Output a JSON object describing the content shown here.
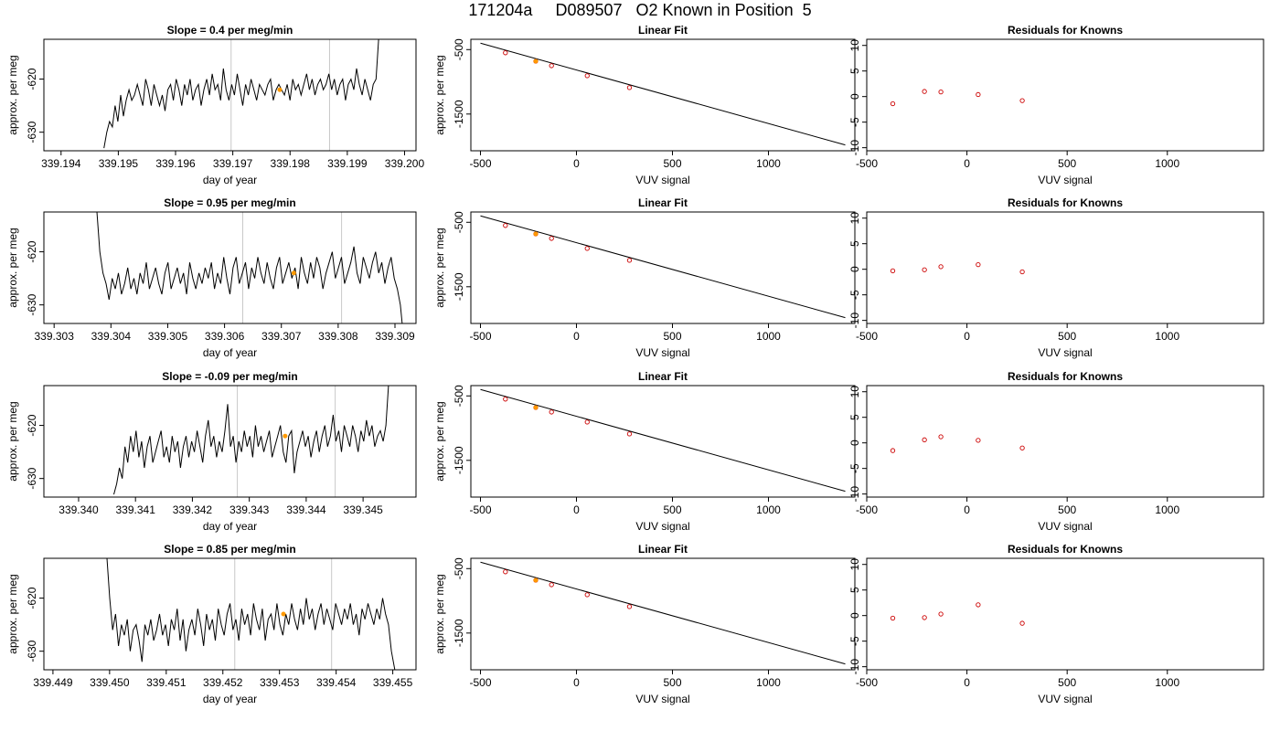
{
  "page": {
    "title": "171204a     D089507   O2 Known in Position  5"
  },
  "chart_data": [
    {
      "type": "line",
      "row": 1,
      "title": "Slope =  0.4  per meg/min",
      "xlabel": "day of year",
      "ylabel": "approx. per meg",
      "xlim": [
        339.1937,
        339.2002
      ],
      "ylim": [
        -633.5,
        -612.5
      ],
      "xticks": [
        "339.194",
        "339.195",
        "339.196",
        "339.197",
        "339.198",
        "339.199",
        "339.200"
      ],
      "yticks": [
        -630,
        -620
      ],
      "vlines": [
        339.19697,
        339.19869
      ],
      "series": [
        {
          "color": "#000000",
          "x_start": 339.19475,
          "x_end": 339.19955,
          "values": [
            -633,
            -630,
            -628,
            -629,
            -625,
            -628,
            -623,
            -627,
            -624,
            -622,
            -624,
            -623,
            -621,
            -623,
            -625,
            -620,
            -622,
            -625,
            -621,
            -623,
            -625,
            -623,
            -626,
            -622,
            -621,
            -624,
            -620,
            -622,
            -625,
            -621,
            -623,
            -620,
            -624,
            -622,
            -621,
            -625,
            -622,
            -620,
            -623,
            -619,
            -622,
            -621,
            -624,
            -618,
            -622,
            -624,
            -621,
            -623,
            -619,
            -622,
            -625,
            -621,
            -623,
            -620,
            -622,
            -624,
            -621,
            -622,
            -623,
            -621,
            -620,
            -624,
            -622,
            -621,
            -622,
            -623,
            -621,
            -624,
            -620,
            -622,
            -621,
            -623,
            -621,
            -619,
            -622,
            -620,
            -623,
            -621,
            -620,
            -622,
            -621,
            -619,
            -622,
            -620,
            -623,
            -621,
            -620,
            -624,
            -621,
            -620,
            -622,
            -618,
            -621,
            -623,
            -620,
            -622,
            -624,
            -621,
            -620,
            -612
          ]
        }
      ],
      "marker": {
        "x": 339.19782,
        "y": -622,
        "color": "#ff9900"
      }
    },
    {
      "type": "scatter",
      "row": 1,
      "title": "Linear Fit",
      "xlabel": "VUV signal",
      "ylabel": "approx. per meg",
      "xlim": [
        -550,
        1450
      ],
      "ylim": [
        -2070,
        -340
      ],
      "xticks": [
        -500,
        0,
        500,
        1000
      ],
      "yticks": [
        -500,
        -1500
      ],
      "line": {
        "x": [
          -500,
          1400
        ],
        "y": [
          -400,
          -1980
        ]
      },
      "series": [
        {
          "color": "#cc0000",
          "x": [
            -370,
            -212,
            -130,
            56,
            276
          ],
          "y": [
            -550,
            -680,
            -750,
            -905,
            -1090
          ]
        }
      ],
      "marker": {
        "x": -212,
        "y": -680,
        "color": "#ff9900"
      }
    },
    {
      "type": "scatter",
      "row": 1,
      "title": "Residuals for Knowns",
      "xlabel": "VUV signal",
      "ylabel": "",
      "xlim": [
        -500,
        1480
      ],
      "ylim": [
        -10.6,
        11.2
      ],
      "xticks": [
        -500,
        0,
        500,
        1000
      ],
      "yticks": [
        -10,
        -5,
        0,
        5,
        10
      ],
      "series": [
        {
          "color": "#cc0000",
          "x": [
            -370,
            -212,
            -130,
            56,
            276
          ],
          "y": [
            -1.4,
            1.0,
            0.9,
            0.4,
            -0.8
          ]
        }
      ]
    },
    {
      "type": "line",
      "row": 2,
      "title": "Slope =  0.95  per meg/min",
      "xlabel": "day of year",
      "ylabel": "approx. per meg",
      "xlim": [
        339.30282,
        339.30937
      ],
      "ylim": [
        -633.5,
        -612.5
      ],
      "xticks": [
        "339.303",
        "339.304",
        "339.305",
        "339.306",
        "339.307",
        "339.308",
        "339.309"
      ],
      "yticks": [
        -630,
        -620
      ],
      "vlines": [
        339.30632,
        339.30806
      ],
      "series": [
        {
          "color": "#000000",
          "x_start": 339.30375,
          "x_end": 339.30915,
          "values": [
            -612,
            -620,
            -624,
            -626,
            -629,
            -625,
            -627,
            -624,
            -628,
            -626,
            -623,
            -627,
            -625,
            -628,
            -624,
            -626,
            -622,
            -627,
            -625,
            -623,
            -626,
            -628,
            -624,
            -622,
            -627,
            -625,
            -623,
            -626,
            -624,
            -628,
            -622,
            -625,
            -627,
            -624,
            -626,
            -623,
            -625,
            -622,
            -627,
            -624,
            -626,
            -621,
            -625,
            -628,
            -623,
            -621,
            -626,
            -624,
            -622,
            -627,
            -623,
            -625,
            -621,
            -624,
            -626,
            -622,
            -625,
            -627,
            -623,
            -621,
            -626,
            -624,
            -622,
            -625,
            -623,
            -627,
            -621,
            -624,
            -626,
            -622,
            -625,
            -621,
            -623,
            -627,
            -624,
            -622,
            -620,
            -625,
            -623,
            -621,
            -626,
            -624,
            -622,
            -619,
            -624,
            -626,
            -621,
            -623,
            -625,
            -622,
            -620,
            -624,
            -622,
            -626,
            -623,
            -621,
            -625,
            -627,
            -630,
            -636
          ]
        }
      ],
      "marker": {
        "x": 339.30722,
        "y": -624,
        "color": "#ff9900"
      }
    },
    {
      "type": "scatter",
      "row": 2,
      "title": "Linear Fit",
      "xlabel": "VUV signal",
      "ylabel": "approx. per meg",
      "xlim": [
        -550,
        1450
      ],
      "ylim": [
        -2070,
        -340
      ],
      "xticks": [
        -500,
        0,
        500,
        1000
      ],
      "yticks": [
        -500,
        -1500
      ],
      "line": {
        "x": [
          -500,
          1400
        ],
        "y": [
          -400,
          -1980
        ]
      },
      "series": [
        {
          "color": "#cc0000",
          "x": [
            -370,
            -212,
            -130,
            56,
            276
          ],
          "y": [
            -550,
            -680,
            -750,
            -905,
            -1090
          ]
        }
      ],
      "marker": {
        "x": -212,
        "y": -680,
        "color": "#ff9900"
      }
    },
    {
      "type": "scatter",
      "row": 2,
      "title": "Residuals for Knowns",
      "xlabel": "VUV signal",
      "ylabel": "",
      "xlim": [
        -500,
        1480
      ],
      "ylim": [
        -10.6,
        11.2
      ],
      "xticks": [
        -500,
        0,
        500,
        1000
      ],
      "yticks": [
        -10,
        -5,
        0,
        5,
        10
      ],
      "series": [
        {
          "color": "#cc0000",
          "x": [
            -370,
            -212,
            -130,
            56,
            276
          ],
          "y": [
            -0.3,
            -0.1,
            0.5,
            0.9,
            -0.5
          ]
        }
      ]
    },
    {
      "type": "line",
      "row": 3,
      "title": "Slope =  -0.09  per meg/min",
      "xlabel": "day of year",
      "ylabel": "approx. per meg",
      "xlim": [
        339.33939,
        339.34593
      ],
      "ylim": [
        -633.5,
        -612.5
      ],
      "xticks": [
        "339.340",
        "339.341",
        "339.342",
        "339.343",
        "339.344",
        "339.345"
      ],
      "yticks": [
        -630,
        -620
      ],
      "vlines": [
        339.34279,
        339.34451
      ],
      "series": [
        {
          "color": "#000000",
          "x_start": 339.34062,
          "x_end": 339.34545,
          "values": [
            -633,
            -631,
            -628,
            -630,
            -624,
            -627,
            -622,
            -625,
            -621,
            -626,
            -623,
            -628,
            -624,
            -622,
            -627,
            -625,
            -623,
            -621,
            -626,
            -624,
            -627,
            -622,
            -625,
            -623,
            -628,
            -624,
            -622,
            -626,
            -623,
            -625,
            -621,
            -624,
            -627,
            -622,
            -619,
            -624,
            -622,
            -626,
            -623,
            -625,
            -621,
            -616,
            -624,
            -622,
            -627,
            -623,
            -625,
            -621,
            -624,
            -622,
            -626,
            -620,
            -624,
            -622,
            -625,
            -623,
            -621,
            -626,
            -624,
            -622,
            -620,
            -625,
            -627,
            -622,
            -621,
            -629,
            -625,
            -623,
            -621,
            -624,
            -622,
            -626,
            -623,
            -621,
            -625,
            -622,
            -620,
            -624,
            -622,
            -618,
            -623,
            -621,
            -625,
            -620,
            -622,
            -624,
            -620,
            -622,
            -625,
            -621,
            -623,
            -619,
            -622,
            -620,
            -624,
            -622,
            -621,
            -623,
            -620,
            -612
          ]
        }
      ],
      "marker": {
        "x": 339.34363,
        "y": -622,
        "color": "#ff9900"
      }
    },
    {
      "type": "scatter",
      "row": 3,
      "title": "Linear Fit",
      "xlabel": "VUV signal",
      "ylabel": "approx. per meg",
      "xlim": [
        -550,
        1450
      ],
      "ylim": [
        -2070,
        -340
      ],
      "xticks": [
        -500,
        0,
        500,
        1000
      ],
      "yticks": [
        -500,
        -1500
      ],
      "line": {
        "x": [
          -500,
          1400
        ],
        "y": [
          -400,
          -1980
        ]
      },
      "series": [
        {
          "color": "#cc0000",
          "x": [
            -370,
            -212,
            -130,
            56,
            276
          ],
          "y": [
            -550,
            -680,
            -750,
            -905,
            -1090
          ]
        }
      ],
      "marker": {
        "x": -212,
        "y": -680,
        "color": "#ff9900"
      }
    },
    {
      "type": "scatter",
      "row": 3,
      "title": "Residuals for Knowns",
      "xlabel": "VUV signal",
      "ylabel": "",
      "xlim": [
        -500,
        1480
      ],
      "ylim": [
        -10.6,
        11.2
      ],
      "xticks": [
        -500,
        0,
        500,
        1000
      ],
      "yticks": [
        -10,
        -5,
        0,
        5,
        10
      ],
      "series": [
        {
          "color": "#cc0000",
          "x": [
            -370,
            -212,
            -130,
            56,
            276
          ],
          "y": [
            -1.5,
            0.6,
            1.2,
            0.5,
            -1.0
          ]
        }
      ]
    },
    {
      "type": "line",
      "row": 4,
      "title": "Slope =  0.85  per meg/min",
      "xlabel": "day of year",
      "ylabel": "approx. per meg",
      "xlim": [
        339.44884,
        339.45541
      ],
      "ylim": [
        -633.5,
        -612.5
      ],
      "xticks": [
        "339.449",
        "339.450",
        "339.451",
        "339.452",
        "339.453",
        "339.454",
        "339.455"
      ],
      "yticks": [
        -630,
        -620
      ],
      "vlines": [
        339.45221,
        339.45392
      ],
      "series": [
        {
          "color": "#000000",
          "x_start": 339.44995,
          "x_end": 339.45508,
          "values": [
            -612,
            -620,
            -626,
            -623,
            -629,
            -625,
            -627,
            -624,
            -630,
            -626,
            -625,
            -628,
            -632,
            -625,
            -627,
            -624,
            -628,
            -626,
            -623,
            -627,
            -625,
            -629,
            -624,
            -626,
            -622,
            -628,
            -624,
            -630,
            -626,
            -624,
            -627,
            -622,
            -625,
            -629,
            -623,
            -626,
            -624,
            -628,
            -622,
            -625,
            -627,
            -623,
            -621,
            -626,
            -624,
            -628,
            -622,
            -625,
            -623,
            -627,
            -621,
            -624,
            -626,
            -622,
            -628,
            -624,
            -623,
            -626,
            -621,
            -625,
            -627,
            -623,
            -625,
            -621,
            -624,
            -626,
            -622,
            -625,
            -620,
            -624,
            -622,
            -626,
            -623,
            -621,
            -625,
            -622,
            -624,
            -626,
            -621,
            -623,
            -625,
            -622,
            -624,
            -621,
            -625,
            -623,
            -627,
            -622,
            -624,
            -621,
            -623,
            -625,
            -622,
            -624,
            -620,
            -623,
            -625,
            -630,
            -633,
            -636
          ]
        }
      ],
      "marker": {
        "x": 339.45307,
        "y": -623,
        "color": "#ff9900"
      }
    },
    {
      "type": "scatter",
      "row": 4,
      "title": "Linear Fit",
      "xlabel": "VUV signal",
      "ylabel": "approx. per meg",
      "xlim": [
        -550,
        1450
      ],
      "ylim": [
        -2070,
        -340
      ],
      "xticks": [
        -500,
        0,
        500,
        1000
      ],
      "yticks": [
        -500,
        -1500
      ],
      "line": {
        "x": [
          -500,
          1400
        ],
        "y": [
          -400,
          -1980
        ]
      },
      "series": [
        {
          "color": "#cc0000",
          "x": [
            -370,
            -212,
            -130,
            56,
            276
          ],
          "y": [
            -550,
            -680,
            -750,
            -905,
            -1090
          ]
        }
      ],
      "marker": {
        "x": -212,
        "y": -680,
        "color": "#ff9900"
      }
    },
    {
      "type": "scatter",
      "row": 4,
      "title": "Residuals for Knowns",
      "xlabel": "VUV signal",
      "ylabel": "",
      "xlim": [
        -500,
        1480
      ],
      "ylim": [
        -10.6,
        11.2
      ],
      "xticks": [
        -500,
        0,
        500,
        1000
      ],
      "yticks": [
        -10,
        -5,
        0,
        5,
        10
      ],
      "series": [
        {
          "color": "#cc0000",
          "x": [
            -370,
            -212,
            -130,
            56,
            276
          ],
          "y": [
            -0.5,
            -0.4,
            0.3,
            2.1,
            -1.5
          ]
        }
      ]
    }
  ]
}
